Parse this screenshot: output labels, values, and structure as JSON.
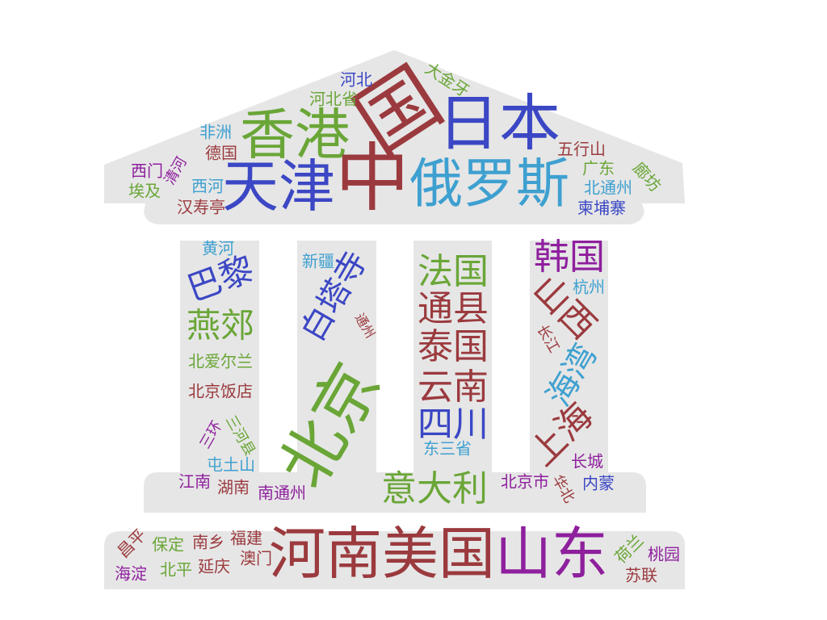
{
  "palette": {
    "red": "#9b3a3e",
    "blue": "#3b47c4",
    "cyan": "#3ea0d0",
    "green": "#6aa637",
    "purple": "#8e1f9d",
    "shape": "#e6e6e6"
  },
  "words": [
    {
      "text": "国",
      "color": "red"
    },
    {
      "text": "日本",
      "color": "blue"
    },
    {
      "text": "香港",
      "color": "green"
    },
    {
      "text": "天津",
      "color": "blue"
    },
    {
      "text": "中",
      "color": "red"
    },
    {
      "text": "俄罗斯",
      "color": "cyan"
    },
    {
      "text": "大金牙",
      "color": "green"
    },
    {
      "text": "河北",
      "color": "blue"
    },
    {
      "text": "河北省",
      "color": "green"
    },
    {
      "text": "非洲",
      "color": "cyan"
    },
    {
      "text": "德国",
      "color": "red"
    },
    {
      "text": "西门",
      "color": "purple"
    },
    {
      "text": "清河",
      "color": "purple"
    },
    {
      "text": "埃及",
      "color": "green"
    },
    {
      "text": "西河",
      "color": "cyan"
    },
    {
      "text": "汉寿亭",
      "color": "red"
    },
    {
      "text": "五行山",
      "color": "red"
    },
    {
      "text": "广东",
      "color": "green"
    },
    {
      "text": "廊坊",
      "color": "green"
    },
    {
      "text": "北通州",
      "color": "cyan"
    },
    {
      "text": "柬埔寨",
      "color": "blue"
    },
    {
      "text": "黄河",
      "color": "cyan"
    },
    {
      "text": "巴黎",
      "color": "blue"
    },
    {
      "text": "燕郊",
      "color": "green"
    },
    {
      "text": "北爱尔兰",
      "color": "green"
    },
    {
      "text": "北京饭店",
      "color": "red"
    },
    {
      "text": "三河县",
      "color": "green"
    },
    {
      "text": "三环",
      "color": "purple"
    },
    {
      "text": "屯土山",
      "color": "cyan"
    },
    {
      "text": "新疆",
      "color": "cyan"
    },
    {
      "text": "白塔寺",
      "color": "blue"
    },
    {
      "text": "通州",
      "color": "red"
    },
    {
      "text": "北京",
      "color": "green"
    },
    {
      "text": "法国",
      "color": "green"
    },
    {
      "text": "通县",
      "color": "red"
    },
    {
      "text": "泰国",
      "color": "red"
    },
    {
      "text": "云南",
      "color": "red"
    },
    {
      "text": "四川",
      "color": "blue"
    },
    {
      "text": "东三省",
      "color": "cyan"
    },
    {
      "text": "韩国",
      "color": "purple"
    },
    {
      "text": "山西",
      "color": "red"
    },
    {
      "text": "杭州",
      "color": "cyan"
    },
    {
      "text": "长江",
      "color": "red"
    },
    {
      "text": "海湾",
      "color": "cyan"
    },
    {
      "text": "上海",
      "color": "red"
    },
    {
      "text": "长城",
      "color": "purple"
    },
    {
      "text": "江南",
      "color": "purple"
    },
    {
      "text": "湖南",
      "color": "red"
    },
    {
      "text": "南通州",
      "color": "purple"
    },
    {
      "text": "意大利",
      "color": "green"
    },
    {
      "text": "北京市",
      "color": "purple"
    },
    {
      "text": "华北",
      "color": "red"
    },
    {
      "text": "内蒙",
      "color": "blue"
    },
    {
      "text": "昌平",
      "color": "red"
    },
    {
      "text": "保定",
      "color": "green"
    },
    {
      "text": "南乡",
      "color": "red"
    },
    {
      "text": "福建",
      "color": "red"
    },
    {
      "text": "海淀",
      "color": "purple"
    },
    {
      "text": "北平",
      "color": "green"
    },
    {
      "text": "延庆",
      "color": "red"
    },
    {
      "text": "澳门",
      "color": "red"
    },
    {
      "text": "河南",
      "color": "red"
    },
    {
      "text": "美国",
      "color": "red"
    },
    {
      "text": "山东",
      "color": "purple"
    },
    {
      "text": "荷兰",
      "color": "green"
    },
    {
      "text": "桃园",
      "color": "purple"
    },
    {
      "text": "苏联",
      "color": "red"
    }
  ]
}
